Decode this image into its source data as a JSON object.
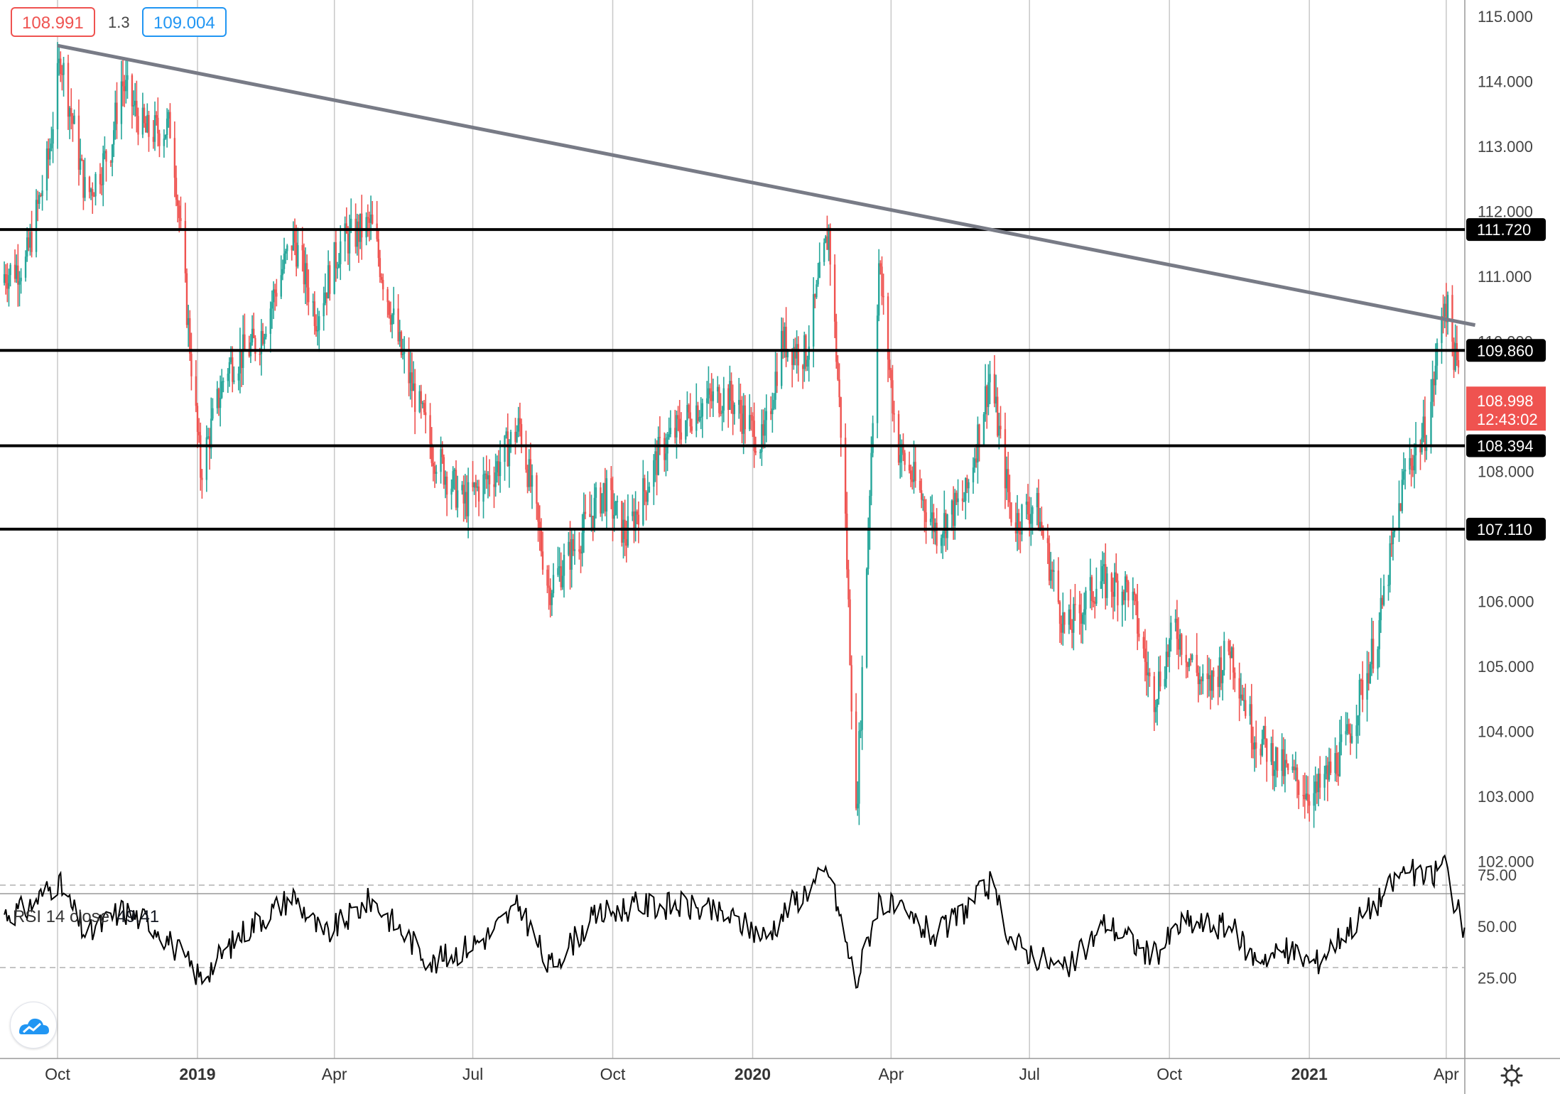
{
  "header": {
    "bid": "108.991",
    "spread": "1.3",
    "ask": "109.004"
  },
  "price_axis": {
    "ticks": [
      "115.000",
      "114.000",
      "113.000",
      "112.000",
      "111.000",
      "110.000",
      "108.000",
      "106.000",
      "105.000",
      "104.000",
      "103.000",
      "102.000"
    ],
    "current_price": "108.998",
    "countdown": "12:43:02"
  },
  "time_axis": {
    "labels": [
      {
        "text": "Oct",
        "bold": false
      },
      {
        "text": "2019",
        "bold": true
      },
      {
        "text": "Apr",
        "bold": false
      },
      {
        "text": "Jul",
        "bold": false
      },
      {
        "text": "Oct",
        "bold": false
      },
      {
        "text": "2020",
        "bold": true
      },
      {
        "text": "Apr",
        "bold": false
      },
      {
        "text": "Jul",
        "bold": false
      },
      {
        "text": "Oct",
        "bold": false
      },
      {
        "text": "2021",
        "bold": true
      },
      {
        "text": "Apr",
        "bold": false
      }
    ]
  },
  "rsi": {
    "label": "RSI 14 close",
    "value": "49.41",
    "ticks": [
      "75.00",
      "50.00",
      "25.00"
    ]
  },
  "colors": {
    "up": "#26a69a",
    "down": "#ef5350",
    "level": "#000000",
    "trend": "#787b86",
    "grid": "#c8c8c8"
  },
  "chart_data": {
    "type": "candlestick",
    "symbol_hint": "USDJPY daily",
    "x_range": [
      "2018-09",
      "2021-04"
    ],
    "ylim": [
      101.5,
      115.3
    ],
    "horizontal_levels": [
      {
        "value": 111.72,
        "label": "111.720"
      },
      {
        "value": 109.86,
        "label": "109.860"
      },
      {
        "value": 108.394,
        "label": "108.394"
      },
      {
        "value": 107.11,
        "label": "107.110"
      }
    ],
    "trendline": {
      "from": {
        "date": "2018-10-01",
        "price": 114.55
      },
      "to": {
        "date": "2021-04-20",
        "price": 110.25
      }
    },
    "price_path": [
      {
        "date": "2018-08-15",
        "price": 110.9
      },
      {
        "date": "2018-09-10",
        "price": 111.2
      },
      {
        "date": "2018-09-25",
        "price": 112.8
      },
      {
        "date": "2018-10-03",
        "price": 114.4
      },
      {
        "date": "2018-10-20",
        "price": 112.2
      },
      {
        "date": "2018-11-05",
        "price": 113.0
      },
      {
        "date": "2018-11-12",
        "price": 114.0
      },
      {
        "date": "2018-11-28",
        "price": 113.2
      },
      {
        "date": "2018-12-15",
        "price": 113.3
      },
      {
        "date": "2018-12-25",
        "price": 110.5
      },
      {
        "date": "2019-01-03",
        "price": 108.0
      },
      {
        "date": "2019-01-20",
        "price": 109.6
      },
      {
        "date": "2019-02-10",
        "price": 110.0
      },
      {
        "date": "2019-03-05",
        "price": 111.6
      },
      {
        "date": "2019-03-20",
        "price": 110.4
      },
      {
        "date": "2019-04-05",
        "price": 111.5
      },
      {
        "date": "2019-04-25",
        "price": 111.8
      },
      {
        "date": "2019-05-15",
        "price": 109.8
      },
      {
        "date": "2019-06-05",
        "price": 108.3
      },
      {
        "date": "2019-06-25",
        "price": 107.5
      },
      {
        "date": "2019-07-15",
        "price": 108.0
      },
      {
        "date": "2019-08-01",
        "price": 108.7
      },
      {
        "date": "2019-08-20",
        "price": 106.2
      },
      {
        "date": "2019-09-05",
        "price": 106.8
      },
      {
        "date": "2019-09-25",
        "price": 107.7
      },
      {
        "date": "2019-10-10",
        "price": 107.0
      },
      {
        "date": "2019-11-01",
        "price": 108.3
      },
      {
        "date": "2019-11-25",
        "price": 109.0
      },
      {
        "date": "2019-12-15",
        "price": 109.2
      },
      {
        "date": "2020-01-08",
        "price": 108.4
      },
      {
        "date": "2020-01-20",
        "price": 110.0
      },
      {
        "date": "2020-02-05",
        "price": 109.8
      },
      {
        "date": "2020-02-20",
        "price": 111.7
      },
      {
        "date": "2020-03-01",
        "price": 107.9
      },
      {
        "date": "2020-03-09",
        "price": 102.6
      },
      {
        "date": "2020-03-24",
        "price": 111.2
      },
      {
        "date": "2020-04-05",
        "price": 108.4
      },
      {
        "date": "2020-05-01",
        "price": 107.1
      },
      {
        "date": "2020-05-20",
        "price": 107.6
      },
      {
        "date": "2020-06-05",
        "price": 109.5
      },
      {
        "date": "2020-06-20",
        "price": 107.2
      },
      {
        "date": "2020-07-05",
        "price": 107.5
      },
      {
        "date": "2020-07-25",
        "price": 105.5
      },
      {
        "date": "2020-08-15",
        "price": 106.3
      },
      {
        "date": "2020-09-05",
        "price": 106.2
      },
      {
        "date": "2020-09-20",
        "price": 104.5
      },
      {
        "date": "2020-10-05",
        "price": 105.6
      },
      {
        "date": "2020-10-25",
        "price": 104.6
      },
      {
        "date": "2020-11-10",
        "price": 105.3
      },
      {
        "date": "2020-11-25",
        "price": 104.0
      },
      {
        "date": "2020-12-15",
        "price": 103.4
      },
      {
        "date": "2021-01-05",
        "price": 103.0
      },
      {
        "date": "2021-01-25",
        "price": 103.8
      },
      {
        "date": "2021-02-15",
        "price": 105.5
      },
      {
        "date": "2021-03-05",
        "price": 108.0
      },
      {
        "date": "2021-03-20",
        "price": 108.7
      },
      {
        "date": "2021-03-31",
        "price": 110.7
      },
      {
        "date": "2021-04-07",
        "price": 109.7
      },
      {
        "date": "2021-04-13",
        "price": 109.0
      }
    ],
    "rsi_path": [
      {
        "date": "2018-08-15",
        "value": 55
      },
      {
        "date": "2018-09-10",
        "value": 58
      },
      {
        "date": "2018-10-01",
        "value": 72
      },
      {
        "date": "2018-10-20",
        "value": 45
      },
      {
        "date": "2018-11-12",
        "value": 58
      },
      {
        "date": "2018-12-05",
        "value": 50
      },
      {
        "date": "2019-01-03",
        "value": 25
      },
      {
        "date": "2019-02-01",
        "value": 48
      },
      {
        "date": "2019-03-05",
        "value": 65
      },
      {
        "date": "2019-03-25",
        "value": 45
      },
      {
        "date": "2019-04-25",
        "value": 63
      },
      {
        "date": "2019-06-05",
        "value": 32
      },
      {
        "date": "2019-07-10",
        "value": 45
      },
      {
        "date": "2019-08-01",
        "value": 60
      },
      {
        "date": "2019-08-20",
        "value": 30
      },
      {
        "date": "2019-09-20",
        "value": 55
      },
      {
        "date": "2019-10-15",
        "value": 60
      },
      {
        "date": "2019-11-15",
        "value": 60
      },
      {
        "date": "2019-12-15",
        "value": 55
      },
      {
        "date": "2020-01-10",
        "value": 45
      },
      {
        "date": "2020-01-25",
        "value": 60
      },
      {
        "date": "2020-02-20",
        "value": 77
      },
      {
        "date": "2020-03-09",
        "value": 22
      },
      {
        "date": "2020-03-24",
        "value": 63
      },
      {
        "date": "2020-05-01",
        "value": 45
      },
      {
        "date": "2020-06-05",
        "value": 70
      },
      {
        "date": "2020-06-20",
        "value": 42
      },
      {
        "date": "2020-07-25",
        "value": 28
      },
      {
        "date": "2020-08-20",
        "value": 52
      },
      {
        "date": "2020-09-20",
        "value": 35
      },
      {
        "date": "2020-10-10",
        "value": 52
      },
      {
        "date": "2020-11-10",
        "value": 50
      },
      {
        "date": "2020-11-25",
        "value": 35
      },
      {
        "date": "2020-12-20",
        "value": 38
      },
      {
        "date": "2021-01-05",
        "value": 32
      },
      {
        "date": "2021-01-25",
        "value": 48
      },
      {
        "date": "2021-02-15",
        "value": 62
      },
      {
        "date": "2021-03-05",
        "value": 78
      },
      {
        "date": "2021-03-20",
        "value": 72
      },
      {
        "date": "2021-03-31",
        "value": 82
      },
      {
        "date": "2021-04-07",
        "value": 60
      },
      {
        "date": "2021-04-13",
        "value": 49.41
      }
    ],
    "rsi_guides": [
      30,
      70
    ]
  }
}
